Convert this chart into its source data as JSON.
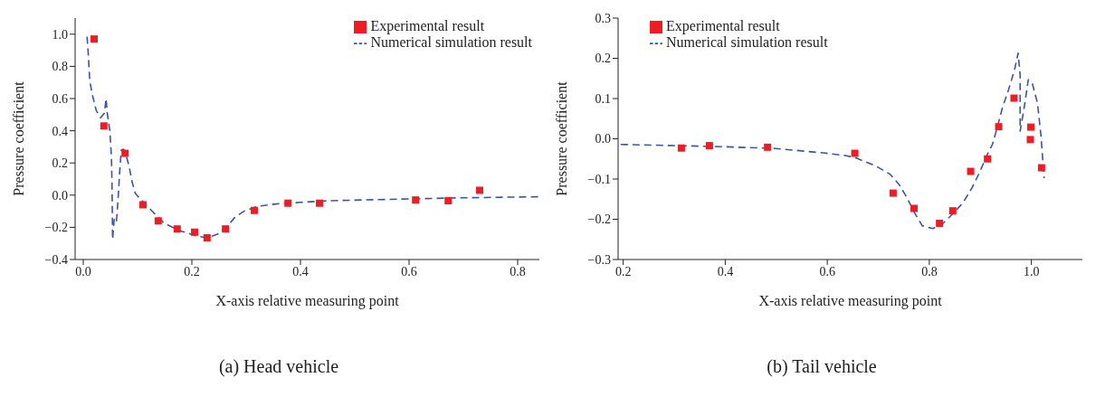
{
  "chart_data": [
    {
      "type": "line",
      "title": "(a) Head vehicle",
      "xlabel": "X-axis relative measuring point",
      "ylabel": "Pressure coefficient",
      "xlim": [
        -0.015,
        0.84
      ],
      "ylim": [
        -0.4,
        1.1
      ],
      "xticks": [
        {
          "value": 0,
          "label": "0.0"
        },
        {
          "value": 0.2,
          "label": "0.2"
        },
        {
          "value": 0.4,
          "label": "0.4"
        },
        {
          "value": 0.6,
          "label": "0.6"
        },
        {
          "value": 0.8,
          "label": "0.8"
        }
      ],
      "yticks": [
        {
          "value": -0.4,
          "label": "−0.4"
        },
        {
          "value": -0.2,
          "label": "−0.2"
        },
        {
          "value": 0,
          "label": "0.0"
        },
        {
          "value": 0.2,
          "label": "0.2"
        },
        {
          "value": 0.4,
          "label": "0.4"
        },
        {
          "value": 0.6,
          "label": "0.6"
        },
        {
          "value": 0.8,
          "label": "0.8"
        },
        {
          "value": 1.0,
          "label": "1.0"
        }
      ],
      "grid": false,
      "legend": "top right",
      "series": [
        {
          "type": "scatter",
          "name": "Experimental result",
          "color": "#ee1c25",
          "marker": "square",
          "x": [
            0.02,
            0.038,
            0.077,
            0.11,
            0.138,
            0.173,
            0.205,
            0.228,
            0.262,
            0.315,
            0.377,
            0.435,
            0.612,
            0.672,
            0.73
          ],
          "values": [
            0.97,
            0.43,
            0.26,
            -0.06,
            -0.16,
            -0.21,
            -0.23,
            -0.265,
            -0.21,
            -0.095,
            -0.05,
            -0.05,
            -0.03,
            -0.035,
            0.03
          ]
        },
        {
          "name": "Numerical simulation result",
          "color": "#3a55a4",
          "marker": "none",
          "line_style": "dashed",
          "x": [
            0.007,
            0.009,
            0.012,
            0.017,
            0.024,
            0.032,
            0.039,
            0.042,
            0.044,
            0.049,
            0.052,
            0.053,
            0.054,
            0.057,
            0.061,
            0.064,
            0.067,
            0.07,
            0.074,
            0.078,
            0.085,
            0.09,
            0.096,
            0.107,
            0.124,
            0.149,
            0.177,
            0.21,
            0.229,
            0.249,
            0.266,
            0.28,
            0.296,
            0.321,
            0.354,
            0.399,
            0.45,
            0.58,
            0.69,
            0.84
          ],
          "values": [
            0.985,
            0.89,
            0.71,
            0.62,
            0.525,
            0.48,
            0.51,
            0.6,
            0.515,
            0.4,
            0.23,
            0.05,
            -0.275,
            -0.15,
            -0.17,
            -0.03,
            0.14,
            0.28,
            0.285,
            0.26,
            0.17,
            0.08,
            0.01,
            -0.03,
            -0.09,
            -0.175,
            -0.22,
            -0.255,
            -0.265,
            -0.24,
            -0.19,
            -0.135,
            -0.1,
            -0.07,
            -0.055,
            -0.045,
            -0.035,
            -0.025,
            -0.017,
            -0.01
          ]
        }
      ]
    },
    {
      "type": "line",
      "title": "(b) Tail vehicle",
      "xlabel": "X-axis relative measuring point",
      "ylabel": "Pressure coefficient",
      "xlim": [
        0.19,
        1.1
      ],
      "ylim": [
        -0.3,
        0.3
      ],
      "xticks": [
        {
          "value": 0.2,
          "label": "0.2"
        },
        {
          "value": 0.4,
          "label": "0.4"
        },
        {
          "value": 0.6,
          "label": "0.6"
        },
        {
          "value": 0.8,
          "label": "0.8"
        },
        {
          "value": 1.0,
          "label": "1.0"
        }
      ],
      "yticks": [
        {
          "value": -0.3,
          "label": "−0.3"
        },
        {
          "value": -0.2,
          "label": "−0.2"
        },
        {
          "value": -0.1,
          "label": "−0.1"
        },
        {
          "value": 0,
          "label": "0.0"
        },
        {
          "value": 0.1,
          "label": "0.1"
        },
        {
          "value": 0.2,
          "label": "0.2"
        },
        {
          "value": 0.3,
          "label": "0.3"
        }
      ],
      "grid": false,
      "legend": "top left",
      "series": [
        {
          "type": "scatter",
          "name": "Experimental result",
          "color": "#ee1c25",
          "marker": "square",
          "x": [
            0.314,
            0.369,
            0.483,
            0.654,
            0.729,
            0.77,
            0.82,
            0.846,
            0.881,
            0.914,
            0.936,
            0.966,
            0.999,
            0.998,
            1.02
          ],
          "values": [
            -0.023,
            -0.017,
            -0.021,
            -0.036,
            -0.135,
            -0.173,
            -0.21,
            -0.179,
            -0.081,
            -0.05,
            0.03,
            0.101,
            0.029,
            -0.002,
            -0.072
          ]
        },
        {
          "name": "Numerical simulation result",
          "color": "#3a55a4",
          "marker": "none",
          "line_style": "dashed",
          "x": [
            0.195,
            0.378,
            0.498,
            0.592,
            0.638,
            0.657,
            0.694,
            0.723,
            0.741,
            0.756,
            0.771,
            0.786,
            0.807,
            0.827,
            0.848,
            0.866,
            0.884,
            0.899,
            0.914,
            0.924,
            0.934,
            0.943,
            0.955,
            0.967,
            0.974,
            0.978,
            0.978,
            0.985,
            0.991,
            0.994,
            1.002,
            1.012,
            1.019,
            1.025
          ],
          "values": [
            -0.014,
            -0.019,
            -0.024,
            -0.035,
            -0.042,
            -0.048,
            -0.067,
            -0.088,
            -0.114,
            -0.146,
            -0.184,
            -0.216,
            -0.223,
            -0.21,
            -0.184,
            -0.159,
            -0.121,
            -0.082,
            -0.038,
            -0.013,
            0.032,
            0.076,
            0.121,
            0.171,
            0.213,
            0.159,
            0.019,
            0.07,
            0.121,
            0.147,
            0.137,
            0.089,
            0.006,
            -0.098
          ]
        }
      ]
    }
  ]
}
